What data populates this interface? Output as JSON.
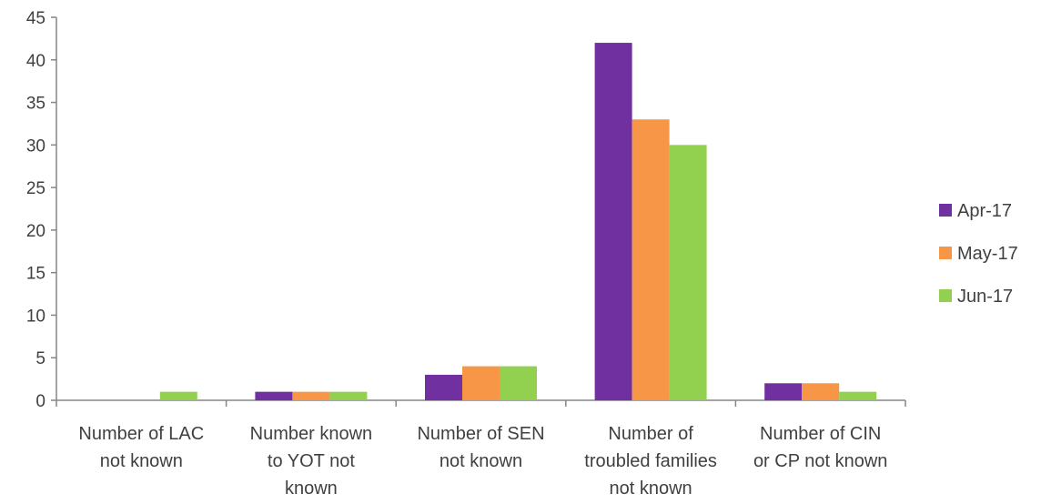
{
  "chart_data": {
    "type": "bar",
    "title": "",
    "xlabel": "",
    "ylabel": "",
    "ylim": [
      0,
      45
    ],
    "ytick_step": 5,
    "yticks": [
      "0",
      "5",
      "10",
      "15",
      "20",
      "25",
      "30",
      "35",
      "40",
      "45"
    ],
    "grid": false,
    "legend_position": "right",
    "categories": [
      [
        "Number of LAC",
        "not known"
      ],
      [
        "Number known",
        "to YOT not",
        "known"
      ],
      [
        "Number of SEN",
        "not known"
      ],
      [
        "Number of",
        "troubled families",
        "not known"
      ],
      [
        "Number of CIN",
        "or CP not known"
      ]
    ],
    "series": [
      {
        "name": "Apr-17",
        "color": "#7030A0",
        "values": [
          0,
          1,
          3,
          42,
          2
        ]
      },
      {
        "name": "May-17",
        "color": "#F79646",
        "values": [
          0,
          1,
          4,
          33,
          2
        ]
      },
      {
        "name": "Jun-17",
        "color": "#92D050",
        "values": [
          1,
          1,
          4,
          30,
          1
        ]
      }
    ]
  }
}
